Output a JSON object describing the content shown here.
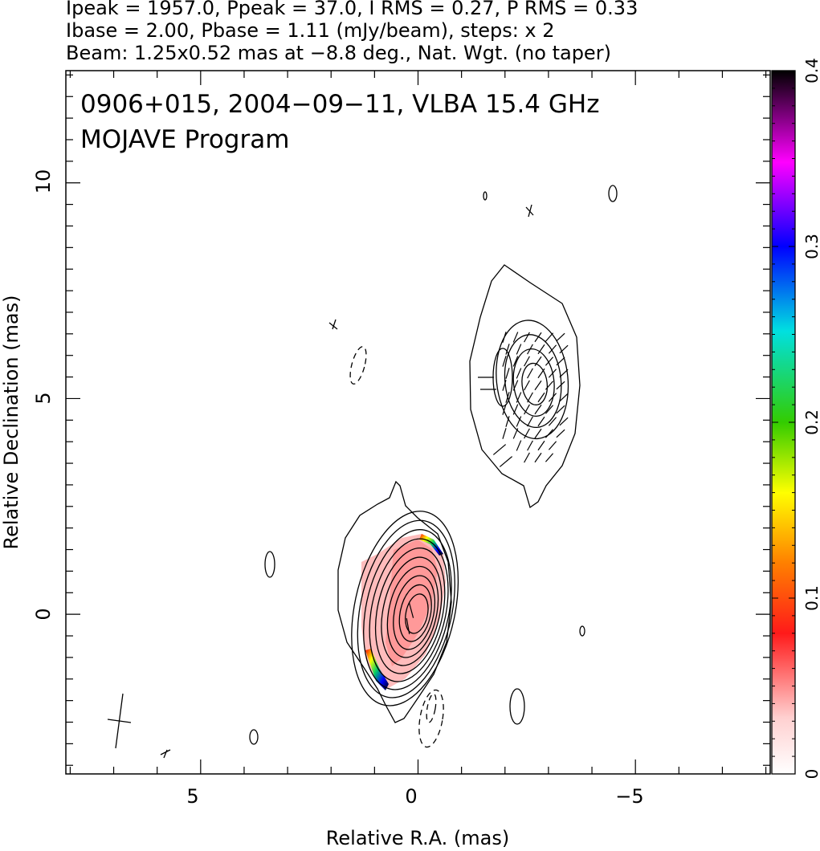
{
  "header": {
    "line1": "Ipeak = 1957.0, Ppeak = 37.0, I RMS = 0.27, P RMS = 0.33",
    "line2": "Ibase = 2.00, Pbase = 1.11 (mJy/beam), steps: x 2",
    "line3": "Beam: 1.25x0.52 mas at −8.8 deg., Nat. Wgt. (no taper)"
  },
  "chart_data": {
    "type": "heatmap",
    "title": "0906+015, 2004−09−11, VLBA 15.4 GHz",
    "subtitle": "MOJAVE Program",
    "xlabel": "Relative R.A. (mas)",
    "ylabel": "Relative Declination (mas)",
    "xlim": [
      8.1,
      -8.1
    ],
    "ylim": [
      -3.7,
      12.6
    ],
    "x_ticks": [
      5,
      0,
      -5
    ],
    "x_tick_labels": [
      "5",
      "0",
      "−5"
    ],
    "y_ticks": [
      0,
      5,
      10
    ],
    "y_tick_labels": [
      "0",
      "5",
      "10"
    ],
    "colorbar": {
      "min": 0,
      "max": 0.4,
      "ticks": [
        0,
        0.1,
        0.2,
        0.3,
        0.4
      ],
      "tick_labels": [
        "0",
        "0.1",
        "0.2",
        "0.3",
        "0.4"
      ]
    },
    "core": {
      "center": [
        0.0,
        0.0
      ],
      "contour_levels_count": 11
    },
    "jet_component": {
      "center": [
        -2.7,
        5.3
      ],
      "contour_levels_count": 5
    },
    "beam": {
      "major_mas": 1.25,
      "minor_mas": 0.52,
      "pa_deg": -8.8,
      "position": [
        6.8,
        -2.6
      ]
    },
    "grid": false,
    "legend": "none"
  }
}
